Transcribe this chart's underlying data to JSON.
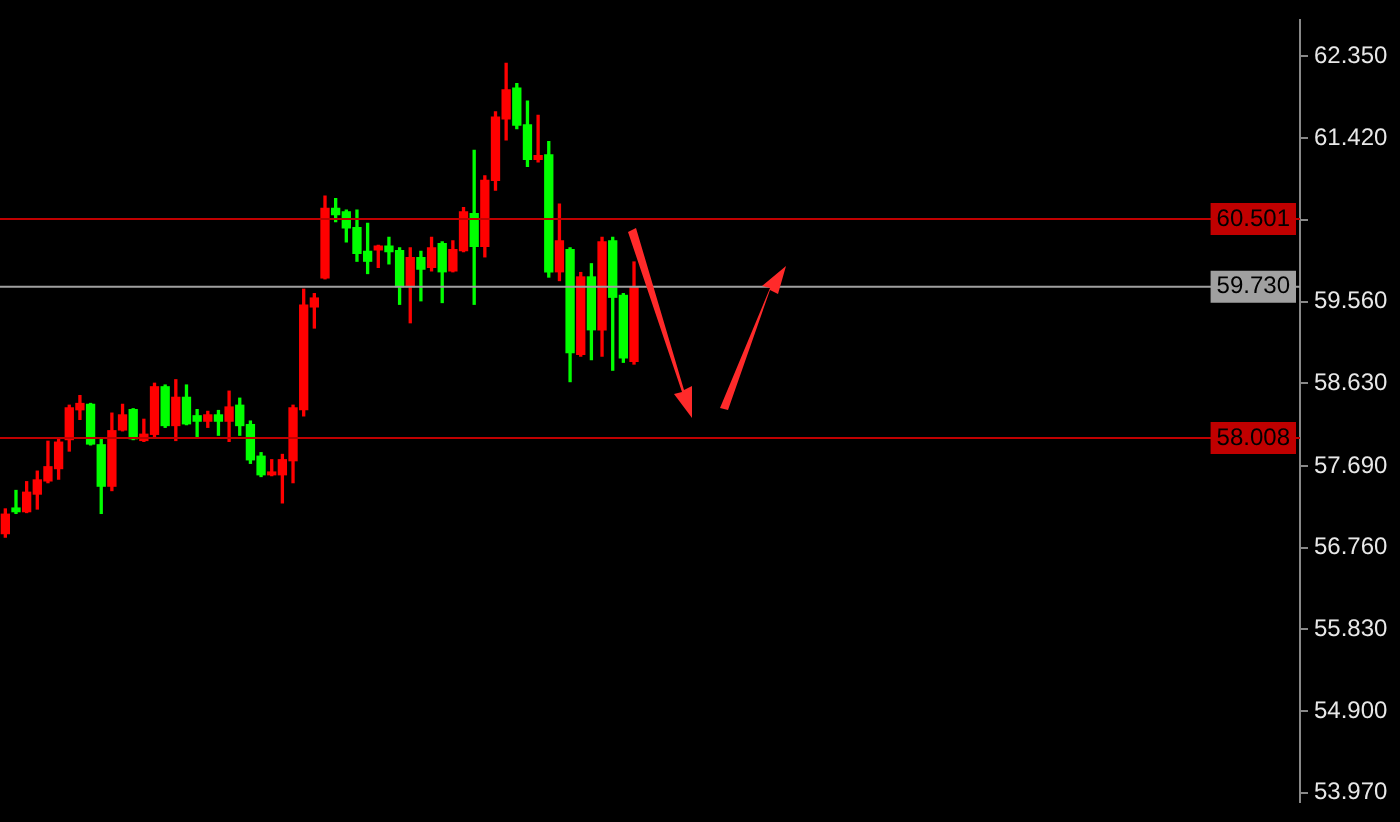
{
  "chart_data": {
    "type": "candlestick",
    "categories": [
      null,
      null,
      null,
      null,
      null,
      null,
      null,
      null,
      null,
      null,
      null,
      null,
      null,
      null,
      null,
      null,
      null,
      null,
      null,
      null,
      null,
      null,
      null,
      null,
      null,
      null,
      null,
      null,
      null,
      null,
      null,
      null,
      null,
      null,
      null,
      null,
      null,
      null,
      null,
      null,
      null,
      null,
      null,
      null,
      null,
      null,
      null,
      null,
      null,
      null,
      null,
      null,
      null,
      null,
      null,
      null,
      null,
      null,
      null,
      null,
      null,
      null,
      null,
      null,
      null,
      null,
      null,
      null,
      null,
      null,
      null,
      null,
      null,
      null,
      null,
      null,
      null,
      null,
      null,
      null,
      null,
      null,
      null,
      null,
      null,
      null,
      null,
      null,
      null,
      null,
      null,
      null,
      null,
      null,
      null,
      null,
      null,
      null,
      null,
      null,
      null,
      null,
      null,
      null,
      null,
      null,
      null,
      null,
      null,
      null,
      null,
      null,
      null,
      null,
      null,
      null,
      null,
      null,
      null,
      null,
      null,
      null
    ],
    "ohlc": [
      [
        56.92,
        57.2,
        56.88,
        57.14
      ],
      [
        57.21,
        57.41,
        57.15,
        57.17
      ],
      [
        57.17,
        57.51,
        57.16,
        57.39
      ],
      [
        57.37,
        57.63,
        57.2,
        57.53
      ],
      [
        57.52,
        57.97,
        57.5,
        57.68
      ],
      [
        57.66,
        57.99,
        57.54,
        57.96
      ],
      [
        57.99,
        58.38,
        57.86,
        58.35
      ],
      [
        58.33,
        58.49,
        58.22,
        58.4
      ],
      [
        58.39,
        58.4,
        57.93,
        57.94
      ],
      [
        57.93,
        57.99,
        57.15,
        57.46
      ],
      [
        57.46,
        58.29,
        57.41,
        58.09
      ],
      [
        58.1,
        58.39,
        58.09,
        58.27
      ],
      [
        58.33,
        58.34,
        57.99,
        58.0
      ],
      [
        57.98,
        58.22,
        57.97,
        58.05
      ],
      [
        58.05,
        58.63,
        58.02,
        58.59
      ],
      [
        58.59,
        58.61,
        58.13,
        58.15
      ],
      [
        58.15,
        58.67,
        57.98,
        58.47
      ],
      [
        58.47,
        58.61,
        58.16,
        58.17
      ],
      [
        58.26,
        58.33,
        58.02,
        58.2
      ],
      [
        58.2,
        58.31,
        58.13,
        58.27
      ],
      [
        58.27,
        58.32,
        58.04,
        58.2
      ],
      [
        58.2,
        58.54,
        57.97,
        58.36
      ],
      [
        58.38,
        58.46,
        58.04,
        58.15
      ],
      [
        58.16,
        58.2,
        57.72,
        57.76
      ],
      [
        57.8,
        57.84,
        57.57,
        57.59
      ],
      [
        57.59,
        57.76,
        57.58,
        57.62
      ],
      [
        57.59,
        57.82,
        57.27,
        57.76
      ],
      [
        57.75,
        58.38,
        57.5,
        58.35
      ],
      [
        58.33,
        59.7,
        58.26,
        59.52
      ],
      [
        59.5,
        59.65,
        59.26,
        59.6
      ],
      [
        59.83,
        60.76,
        59.82,
        60.62
      ],
      [
        60.62,
        60.73,
        60.47,
        60.55
      ],
      [
        60.58,
        60.6,
        60.24,
        60.4
      ],
      [
        60.4,
        60.6,
        60.02,
        60.11
      ],
      [
        60.13,
        60.45,
        59.88,
        60.02
      ],
      [
        60.15,
        60.2,
        59.95,
        60.19
      ],
      [
        60.19,
        60.29,
        59.99,
        60.13
      ],
      [
        60.14,
        60.17,
        59.53,
        59.73
      ],
      [
        59.73,
        60.17,
        59.32,
        60.06
      ],
      [
        60.06,
        60.13,
        59.57,
        59.93
      ],
      [
        59.95,
        60.29,
        59.91,
        60.17
      ],
      [
        60.22,
        60.24,
        59.55,
        59.9
      ],
      [
        59.91,
        60.25,
        59.9,
        60.15
      ],
      [
        60.14,
        60.63,
        60.13,
        60.58
      ],
      [
        60.56,
        61.28,
        59.53,
        60.19
      ],
      [
        60.19,
        60.99,
        60.07,
        60.94
      ],
      [
        60.94,
        61.72,
        60.83,
        61.66
      ],
      [
        61.64,
        62.27,
        61.4,
        61.97
      ],
      [
        61.99,
        62.04,
        61.53,
        61.57
      ],
      [
        61.57,
        61.84,
        61.1,
        61.18
      ],
      [
        61.18,
        61.68,
        61.15,
        61.22
      ],
      [
        61.23,
        61.38,
        59.84,
        59.9
      ],
      [
        59.9,
        60.67,
        59.8,
        60.25
      ],
      [
        60.15,
        60.17,
        58.65,
        58.98
      ],
      [
        58.96,
        59.89,
        58.94,
        59.84
      ],
      [
        59.84,
        59.99,
        58.9,
        59.24
      ],
      [
        59.24,
        60.29,
        58.94,
        60.24
      ],
      [
        60.25,
        60.29,
        58.78,
        59.61
      ],
      [
        59.63,
        59.65,
        58.87,
        58.92
      ],
      [
        58.88,
        60.01,
        58.85,
        59.73
      ],
      null,
      null,
      null,
      null,
      null,
      null,
      null,
      null,
      null,
      null,
      null,
      null,
      null,
      null,
      null,
      null,
      null,
      null,
      null,
      null,
      null,
      null,
      null,
      null,
      null,
      null,
      null,
      null,
      null,
      null,
      null,
      null,
      null,
      null,
      null,
      null,
      null,
      null,
      null,
      null,
      null,
      null,
      null,
      null,
      null,
      null,
      null,
      null,
      null,
      null,
      null,
      null,
      null,
      null,
      null,
      null,
      null,
      null,
      null,
      null,
      null,
      null
    ],
    "colors": [
      "#ff0000",
      "#00ff00",
      "#ff0000",
      "#ff0000",
      "#ff0000",
      "#ff0000",
      "#ff0000",
      "#ff0000",
      "#00ff00",
      "#00ff00",
      "#ff0000",
      "#ff0000",
      "#00ff00",
      "#ff0000",
      "#ff0000",
      "#00ff00",
      "#ff0000",
      "#00ff00",
      "#00ff00",
      "#ff0000",
      "#00ff00",
      "#ff0000",
      "#00ff00",
      "#00ff00",
      "#00ff00",
      "#ff0000",
      "#ff0000",
      "#ff0000",
      "#ff0000",
      "#ff0000",
      "#ff0000",
      "#00ff00",
      "#00ff00",
      "#00ff00",
      "#00ff00",
      "#ff0000",
      "#00ff00",
      "#00ff00",
      "#ff0000",
      "#00ff00",
      "#ff0000",
      "#00ff00",
      "#ff0000",
      "#ff0000",
      "#00ff00",
      "#ff0000",
      "#ff0000",
      "#ff0000",
      "#00ff00",
      "#00ff00",
      "#ff0000",
      "#00ff00",
      "#ff0000",
      "#00ff00",
      "#ff0000",
      "#00ff00",
      "#ff0000",
      "#00ff00",
      "#00ff00",
      "#ff0000",
      null,
      null,
      null,
      null,
      null,
      null,
      null,
      null,
      null,
      null,
      null,
      null,
      null,
      null,
      null,
      null,
      null,
      null,
      null,
      null,
      null,
      null,
      null,
      null,
      null,
      null,
      null,
      null,
      null,
      null,
      null,
      null,
      null,
      null,
      null,
      null,
      null,
      null,
      null,
      null,
      null,
      null,
      null,
      null,
      null,
      null,
      null,
      null,
      null,
      null,
      null,
      null,
      null,
      null,
      null,
      null,
      null,
      null,
      null,
      null,
      null,
      null
    ],
    "ylim": [
      53.87,
      62.76
    ],
    "yticks": [
      {
        "value": 62.35,
        "label": "62.350"
      },
      {
        "value": 61.42,
        "label": "61.420"
      },
      {
        "value": 60.49,
        "label": null
      },
      {
        "value": 59.56,
        "label": "59.560"
      },
      {
        "value": 58.63,
        "label": "58.630"
      },
      {
        "value": 57.69,
        "label": "57.690"
      },
      {
        "value": 56.76,
        "label": "56.760"
      },
      {
        "value": 55.83,
        "label": "55.830"
      },
      {
        "value": 54.9,
        "label": "54.900"
      },
      {
        "value": 53.97,
        "label": "53.970"
      }
    ],
    "ref_lines": [
      {
        "axis": "y",
        "value": 60.501,
        "label": "60.501",
        "color": "#c00000"
      },
      {
        "axis": "y",
        "value": 59.73,
        "label": "59.730",
        "color": "#a0a0a0"
      },
      {
        "axis": "y",
        "value": 58.008,
        "label": "58.008",
        "color": "#c00000"
      }
    ],
    "tick_labels": "y",
    "grid": false,
    "legend": false
  }
}
